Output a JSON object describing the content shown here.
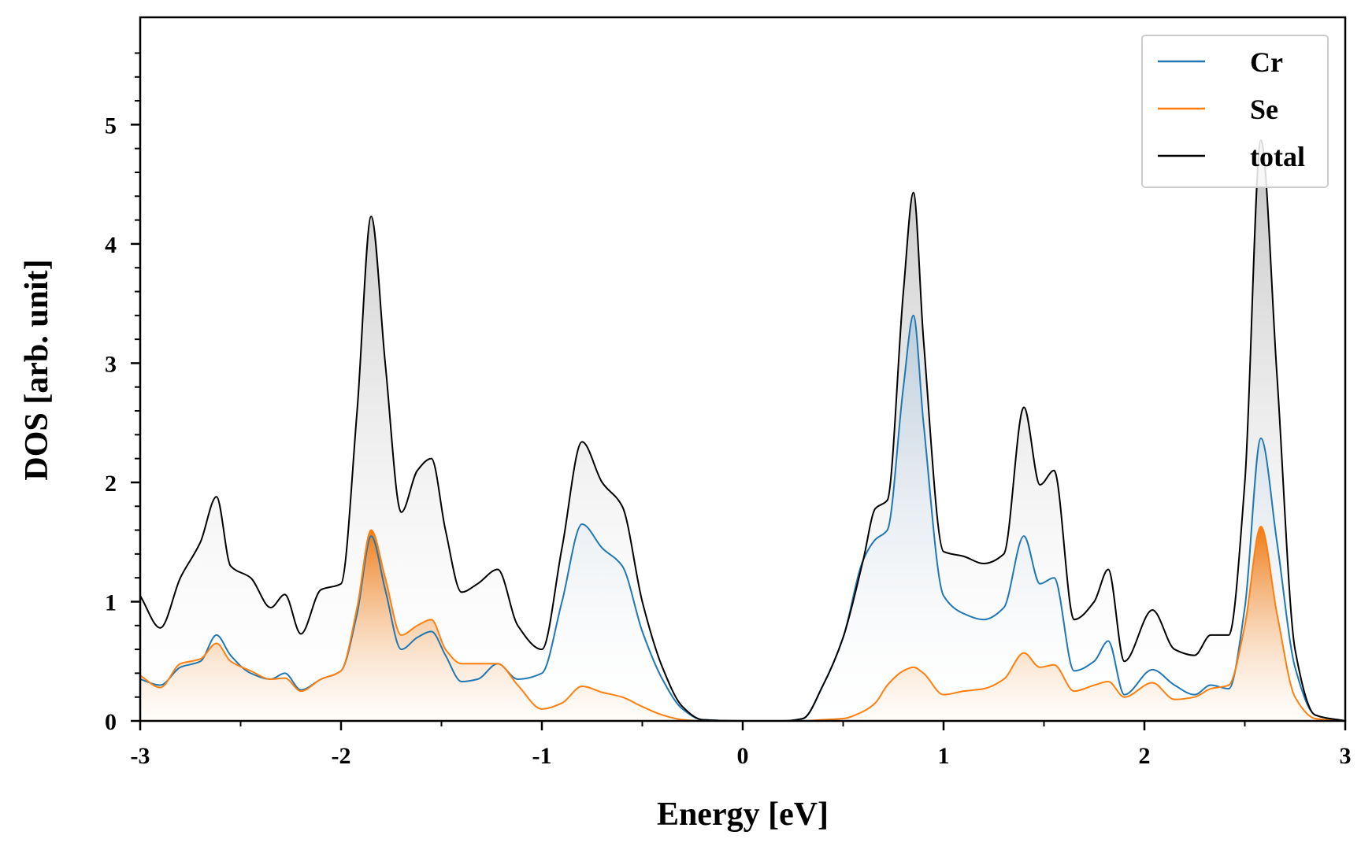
{
  "chart_data": {
    "type": "area",
    "title": "",
    "xlabel": "Energy [eV]",
    "ylabel": "DOS [arb. unit]",
    "xlim": [
      -3,
      3
    ],
    "ylim": [
      0,
      5.9
    ],
    "xticks": [
      -3,
      -2,
      -1,
      0,
      1,
      2,
      3
    ],
    "xtick_labels": [
      "-3",
      "-2",
      "-1",
      "0",
      "1",
      "2",
      "3"
    ],
    "yticks": [
      0,
      1,
      2,
      3,
      4,
      5
    ],
    "ytick_labels": [
      "0",
      "1",
      "2",
      "3",
      "4",
      "5"
    ],
    "legend_position": "top-right",
    "x": [
      -3.0,
      -2.9,
      -2.8,
      -2.7,
      -2.62,
      -2.55,
      -2.45,
      -2.35,
      -2.28,
      -2.2,
      -2.1,
      -2.0,
      -1.92,
      -1.85,
      -1.78,
      -1.7,
      -1.62,
      -1.55,
      -1.48,
      -1.4,
      -1.32,
      -1.22,
      -1.12,
      -1.0,
      -0.9,
      -0.8,
      -0.7,
      -0.6,
      -0.5,
      -0.4,
      -0.3,
      -0.2,
      0.0,
      0.2,
      0.3,
      0.4,
      0.5,
      0.6,
      0.66,
      0.72,
      0.8,
      0.85,
      0.9,
      1.0,
      1.1,
      1.2,
      1.3,
      1.4,
      1.48,
      1.55,
      1.65,
      1.75,
      1.82,
      1.9,
      2.04,
      2.15,
      2.25,
      2.33,
      2.42,
      2.5,
      2.58,
      2.66,
      2.75,
      2.85,
      3.0
    ],
    "series": [
      {
        "name": "Cr",
        "color": "#1f77b4",
        "values": [
          0.35,
          0.3,
          0.45,
          0.5,
          0.72,
          0.55,
          0.4,
          0.35,
          0.4,
          0.26,
          0.35,
          0.42,
          0.9,
          1.55,
          1.1,
          0.6,
          0.7,
          0.75,
          0.55,
          0.33,
          0.35,
          0.48,
          0.35,
          0.4,
          1.0,
          1.65,
          1.45,
          1.3,
          0.75,
          0.35,
          0.1,
          0.01,
          0.0,
          0.0,
          0.02,
          0.3,
          0.7,
          1.35,
          1.52,
          1.6,
          2.8,
          3.4,
          2.5,
          1.05,
          0.9,
          0.85,
          0.95,
          1.55,
          1.15,
          1.2,
          0.42,
          0.5,
          0.67,
          0.22,
          0.43,
          0.3,
          0.22,
          0.3,
          0.27,
          0.95,
          2.37,
          1.5,
          0.45,
          0.05,
          0.0
        ]
      },
      {
        "name": "Se",
        "color": "#ff7f0e",
        "values": [
          0.38,
          0.28,
          0.48,
          0.52,
          0.65,
          0.5,
          0.42,
          0.35,
          0.36,
          0.25,
          0.35,
          0.42,
          0.95,
          1.6,
          1.2,
          0.72,
          0.8,
          0.85,
          0.6,
          0.48,
          0.48,
          0.48,
          0.3,
          0.1,
          0.15,
          0.29,
          0.24,
          0.2,
          0.12,
          0.05,
          0.01,
          0.0,
          0.0,
          0.0,
          0.0,
          0.01,
          0.02,
          0.08,
          0.15,
          0.3,
          0.42,
          0.45,
          0.4,
          0.22,
          0.25,
          0.27,
          0.35,
          0.57,
          0.45,
          0.47,
          0.25,
          0.3,
          0.33,
          0.2,
          0.32,
          0.18,
          0.2,
          0.27,
          0.3,
          0.8,
          1.63,
          0.9,
          0.2,
          0.02,
          0.0
        ]
      },
      {
        "name": "total",
        "color": "#000000",
        "values": [
          1.05,
          0.78,
          1.2,
          1.5,
          1.88,
          1.3,
          1.2,
          0.95,
          1.06,
          0.73,
          1.1,
          1.15,
          2.6,
          4.23,
          3.0,
          1.75,
          2.1,
          2.2,
          1.6,
          1.08,
          1.15,
          1.27,
          0.8,
          0.6,
          1.45,
          2.34,
          2.0,
          1.8,
          1.0,
          0.45,
          0.12,
          0.01,
          0.0,
          0.0,
          0.02,
          0.3,
          0.7,
          1.35,
          1.78,
          1.85,
          3.6,
          4.43,
          3.2,
          1.42,
          1.38,
          1.32,
          1.4,
          2.63,
          1.98,
          2.1,
          0.85,
          1.0,
          1.27,
          0.5,
          0.93,
          0.6,
          0.55,
          0.72,
          0.72,
          2.0,
          4.87,
          2.9,
          0.6,
          0.05,
          0.0
        ]
      }
    ]
  }
}
